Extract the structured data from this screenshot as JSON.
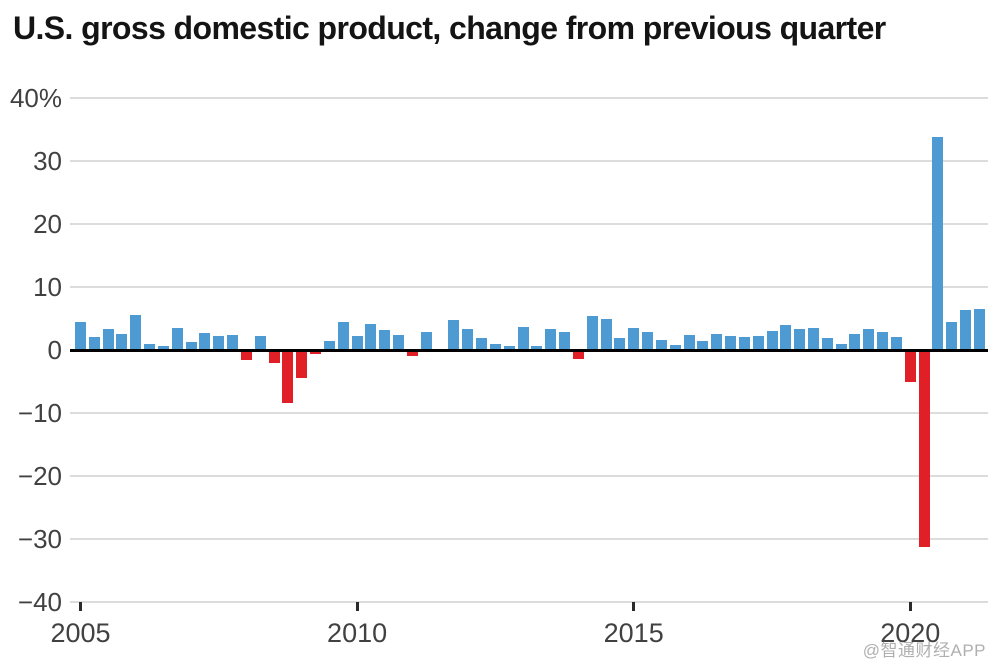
{
  "title": "U.S. gross domestic product, change from previous quarter",
  "watermark": "@智通财经APP",
  "colors": {
    "positive_bar": "#4E9BD4",
    "negative_bar": "#E01F26",
    "gridline": "#dcdcdc",
    "zero_line": "#000000",
    "axis_text": "#414141",
    "title_text": "#141414",
    "background": "#ffffff"
  },
  "chart_data": {
    "type": "bar",
    "title": "U.S. gross domestic product, change from previous quarter",
    "xlabel": "",
    "ylabel": "",
    "y_unit": "%",
    "ylim": [
      -40,
      40
    ],
    "grid": true,
    "legend": "none",
    "categories": [
      "2005Q1",
      "2005Q2",
      "2005Q3",
      "2005Q4",
      "2006Q1",
      "2006Q2",
      "2006Q3",
      "2006Q4",
      "2007Q1",
      "2007Q2",
      "2007Q3",
      "2007Q4",
      "2008Q1",
      "2008Q2",
      "2008Q3",
      "2008Q4",
      "2009Q1",
      "2009Q2",
      "2009Q3",
      "2009Q4",
      "2010Q1",
      "2010Q2",
      "2010Q3",
      "2010Q4",
      "2011Q1",
      "2011Q2",
      "2011Q3",
      "2011Q4",
      "2012Q1",
      "2012Q2",
      "2012Q3",
      "2012Q4",
      "2013Q1",
      "2013Q2",
      "2013Q3",
      "2013Q4",
      "2014Q1",
      "2014Q2",
      "2014Q3",
      "2014Q4",
      "2015Q1",
      "2015Q2",
      "2015Q3",
      "2015Q4",
      "2016Q1",
      "2016Q2",
      "2016Q3",
      "2016Q4",
      "2017Q1",
      "2017Q2",
      "2017Q3",
      "2017Q4",
      "2018Q1",
      "2018Q2",
      "2018Q3",
      "2018Q4",
      "2019Q1",
      "2019Q2",
      "2019Q3",
      "2019Q4",
      "2020Q1",
      "2020Q2",
      "2020Q3",
      "2020Q4",
      "2021Q1",
      "2021Q2"
    ],
    "values": [
      4.5,
      2.1,
      3.4,
      2.5,
      5.6,
      1.0,
      0.7,
      3.5,
      1.2,
      2.7,
      2.3,
      2.4,
      -1.6,
      2.3,
      -2.1,
      -8.4,
      -4.4,
      -0.6,
      1.5,
      4.5,
      2.2,
      4.1,
      3.2,
      2.4,
      -1.0,
      2.8,
      0.0,
      4.7,
      3.4,
      1.9,
      0.9,
      0.6,
      3.7,
      0.6,
      3.3,
      2.9,
      -1.5,
      5.4,
      4.9,
      1.9,
      3.5,
      2.8,
      1.6,
      0.8,
      2.4,
      1.5,
      2.5,
      2.2,
      2.0,
      2.3,
      3.0,
      4.0,
      3.3,
      3.5,
      1.9,
      0.9,
      2.5,
      3.3,
      2.8,
      2.0,
      -5.0,
      -31.2,
      33.8,
      4.5,
      6.3,
      6.5
    ],
    "yticks": [
      {
        "value": 40,
        "label": "40%"
      },
      {
        "value": 30,
        "label": "30"
      },
      {
        "value": 20,
        "label": "20"
      },
      {
        "value": 10,
        "label": "10"
      },
      {
        "value": 0,
        "label": "0"
      },
      {
        "value": -10,
        "label": "−10"
      },
      {
        "value": -20,
        "label": "−20"
      },
      {
        "value": -30,
        "label": "−30"
      },
      {
        "value": -40,
        "label": "−40"
      }
    ],
    "xticks": [
      {
        "index": 0,
        "label": "2005"
      },
      {
        "index": 20,
        "label": "2010"
      },
      {
        "index": 40,
        "label": "2015"
      },
      {
        "index": 60,
        "label": "2020"
      }
    ]
  }
}
